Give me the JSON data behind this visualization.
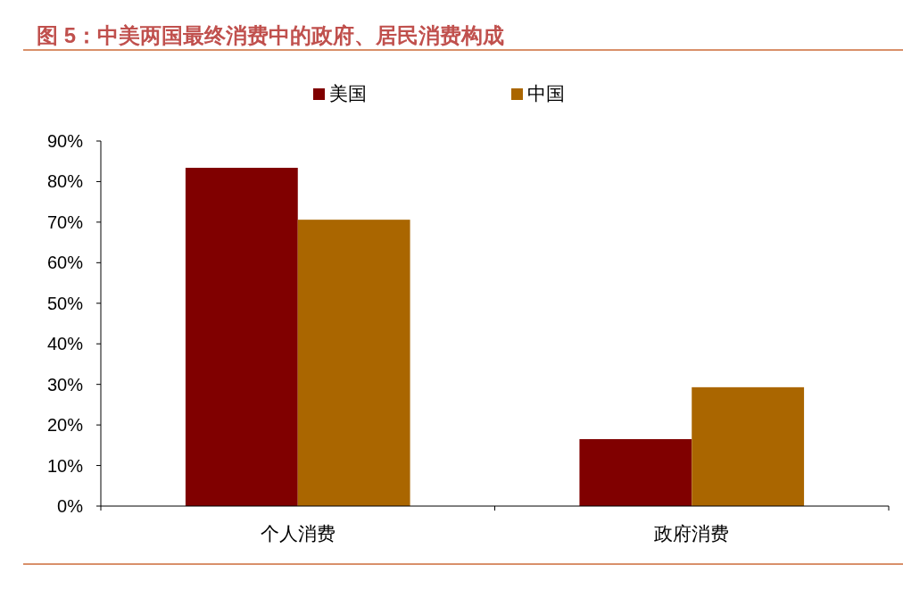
{
  "chart_data": {
    "type": "bar",
    "title": "图 5：中美两国最终消费中的政府、居民消费构成",
    "categories": [
      "个人消费",
      "政府消费"
    ],
    "series": [
      {
        "name": "美国",
        "color": "#800000",
        "values": [
          83.4,
          16.5
        ]
      },
      {
        "name": "中国",
        "color": "#aa6600",
        "values": [
          70.6,
          29.3
        ]
      }
    ],
    "ylim": [
      0,
      90
    ],
    "yticks": [
      {
        "value": 0,
        "label": "0%"
      },
      {
        "value": 10,
        "label": "10%"
      },
      {
        "value": 20,
        "label": "20%"
      },
      {
        "value": 30,
        "label": "30%"
      },
      {
        "value": 40,
        "label": "40%"
      },
      {
        "value": 50,
        "label": "50%"
      },
      {
        "value": 60,
        "label": "60%"
      },
      {
        "value": 70,
        "label": "70%"
      },
      {
        "value": 80,
        "label": "80%"
      },
      {
        "value": 90,
        "label": "90%"
      }
    ],
    "grid": false,
    "legend": "top"
  }
}
